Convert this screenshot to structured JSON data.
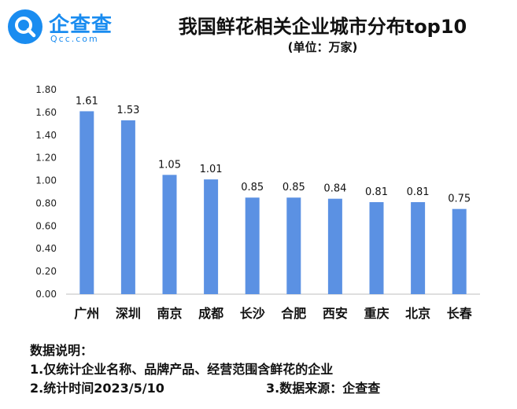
{
  "logo": {
    "name": "企查查",
    "domain": "Qcc.com",
    "color": "#1a8cf0",
    "icon": "magnifier-logo-icon"
  },
  "header": {
    "title": "我国鲜花相关企业城市分布top10",
    "subtitle": "(单位：万家)"
  },
  "chart_data": {
    "type": "bar",
    "title": "我国鲜花相关企业城市分布top10",
    "subtitle": "(单位：万家)",
    "categories": [
      "广州",
      "深圳",
      "南京",
      "成都",
      "长沙",
      "合肥",
      "西安",
      "重庆",
      "北京",
      "长春"
    ],
    "values": [
      1.61,
      1.53,
      1.05,
      1.01,
      0.85,
      0.85,
      0.84,
      0.81,
      0.81,
      0.75
    ],
    "value_labels": [
      "1.61",
      "1.53",
      "1.05",
      "1.01",
      "0.85",
      "0.85",
      "0.84",
      "0.81",
      "0.81",
      "0.75"
    ],
    "y_ticks": [
      "0.00",
      "0.20",
      "0.40",
      "0.60",
      "0.80",
      "1.00",
      "1.20",
      "1.40",
      "1.60",
      "1.80"
    ],
    "ylim": [
      0,
      1.8
    ],
    "grid": false,
    "bar_color": "#5b91e3",
    "xlabel": "",
    "ylabel": ""
  },
  "notes": {
    "heading": "数据说明：",
    "note1": "1.仅统计企业名称、品牌产品、经营范围含鲜花的企业",
    "note2": "2.统计时间2023/5/10",
    "note3": "3.数据来源：企查查"
  }
}
